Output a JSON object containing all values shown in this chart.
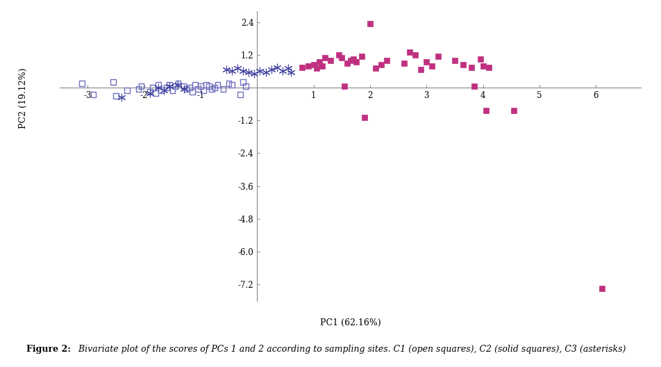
{
  "C1_x": [
    -3.1,
    -2.9,
    -2.55,
    -2.5,
    -2.3,
    -2.1,
    -2.05,
    -1.9,
    -1.85,
    -1.8,
    -1.75,
    -1.7,
    -1.6,
    -1.55,
    -1.5,
    -1.45,
    -1.4,
    -1.3,
    -1.25,
    -1.2,
    -1.15,
    -1.1,
    -1.05,
    -1.0,
    -0.95,
    -0.9,
    -0.85,
    -0.8,
    -0.75,
    -0.7,
    -0.6,
    -0.5,
    -0.45,
    -0.3,
    -0.25,
    -0.2
  ],
  "C1_y": [
    0.15,
    -0.25,
    0.2,
    -0.3,
    -0.1,
    -0.05,
    0.05,
    -0.15,
    0.0,
    -0.2,
    0.1,
    -0.1,
    0.0,
    0.1,
    -0.1,
    0.05,
    0.15,
    0.05,
    -0.05,
    0.0,
    -0.15,
    0.1,
    -0.05,
    0.05,
    -0.1,
    0.1,
    0.05,
    -0.05,
    0.0,
    0.1,
    -0.05,
    0.15,
    0.1,
    -0.25,
    0.2,
    0.05
  ],
  "C2_x": [
    0.8,
    0.9,
    1.0,
    1.05,
    1.1,
    1.15,
    1.2,
    1.3,
    1.45,
    1.5,
    1.55,
    1.6,
    1.65,
    1.7,
    1.75,
    1.85,
    1.9,
    2.0,
    2.1,
    2.2,
    2.3,
    2.6,
    2.7,
    2.8,
    2.9,
    3.0,
    3.1,
    3.2,
    3.5,
    3.65,
    3.8,
    3.85,
    3.95,
    4.0,
    4.05,
    4.1,
    4.55,
    6.1
  ],
  "C2_y": [
    0.75,
    0.8,
    0.85,
    0.7,
    0.95,
    0.8,
    1.1,
    1.0,
    1.2,
    1.1,
    0.05,
    0.9,
    1.0,
    1.05,
    0.95,
    1.15,
    -1.1,
    2.35,
    0.7,
    0.85,
    1.0,
    0.9,
    1.3,
    1.2,
    0.65,
    0.95,
    0.8,
    1.15,
    1.0,
    0.85,
    0.75,
    0.05,
    1.05,
    0.8,
    -0.85,
    0.75,
    -0.85,
    -7.35
  ],
  "C3_x": [
    -2.4,
    -1.9,
    -1.75,
    -1.65,
    -1.55,
    -1.4,
    -1.3,
    -0.55,
    -0.45,
    -0.35,
    -0.25,
    -0.15,
    -0.05,
    0.05,
    0.15,
    0.25,
    0.35,
    0.45,
    0.55,
    0.6
  ],
  "C3_y": [
    -0.35,
    -0.2,
    0.0,
    -0.1,
    0.05,
    0.1,
    -0.05,
    0.65,
    0.6,
    0.7,
    0.6,
    0.55,
    0.5,
    0.6,
    0.55,
    0.65,
    0.75,
    0.6,
    0.7,
    0.55
  ],
  "xlabel": "PC1 (62.16%)",
  "ylabel": "PC2 (19.12%)",
  "xlim": [
    -3.5,
    6.8
  ],
  "ylim": [
    -7.8,
    2.8
  ],
  "xticks": [
    -3,
    -2,
    -1,
    1,
    2,
    3,
    4,
    5,
    6
  ],
  "yticks": [
    2.4,
    1.2,
    -1.2,
    -2.4,
    -3.6,
    -4.8,
    -6.0,
    -7.2
  ],
  "C1_color": "#7070C0",
  "C2_color": "#C03080",
  "C3_color": "#4040A0",
  "markersize_squares": 30,
  "markersize_asterisk": 60,
  "figure_caption_bold": "Figure 2:",
  "figure_caption_italic": " Bivariate plot of the scores of PCs 1 and 2 according to sampling sites. C1 (open squares), C2 (solid squares), C3 (asterisks)"
}
